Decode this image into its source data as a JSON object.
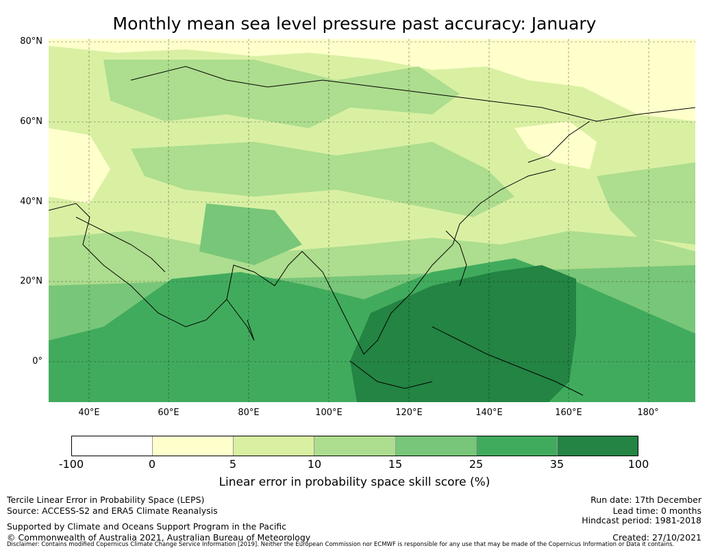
{
  "title": "Monthly mean sea level pressure past accuracy: January",
  "lat_labels": [
    "80°N",
    "60°N",
    "40°N",
    "20°N",
    "0°"
  ],
  "lon_labels": [
    "40°E",
    "60°E",
    "80°E",
    "100°E",
    "120°E",
    "140°E",
    "160°E",
    "180°"
  ],
  "colorbar": {
    "ticks": [
      "-100",
      "0",
      "5",
      "10",
      "15",
      "25",
      "35",
      "100"
    ],
    "colors": [
      "#ffffff",
      "#ffffcc",
      "#d9f0a3",
      "#addd8e",
      "#78c679",
      "#41ab5d",
      "#238443"
    ],
    "label": "Linear error in probability space skill score (%)"
  },
  "info_left": {
    "line1": "Tercile Linear Error in Probability Space (LEPS)",
    "line2": "Source: ACCESS-S2 and ERA5 Climate Reanalysis",
    "line3": "Supported by Climate and Oceans Support Program in the Pacific",
    "line4": "© Commonwealth of Australia 2021, Australian Bureau of Meteorology"
  },
  "info_right": {
    "run_date": "Run date: 17th December",
    "lead_time": "Lead time: 0 months",
    "hindcast": "Hindcast period: 1981-2018",
    "created": "Created: 27/10/2021"
  },
  "disclaimer": "Disclaimer: Contains modified Copernicus Climate Change Service Information [2019]. Neither the European Commission nor ECMWF is responsible for any use that may be made of the Copernicus Information or Data it contains."
}
